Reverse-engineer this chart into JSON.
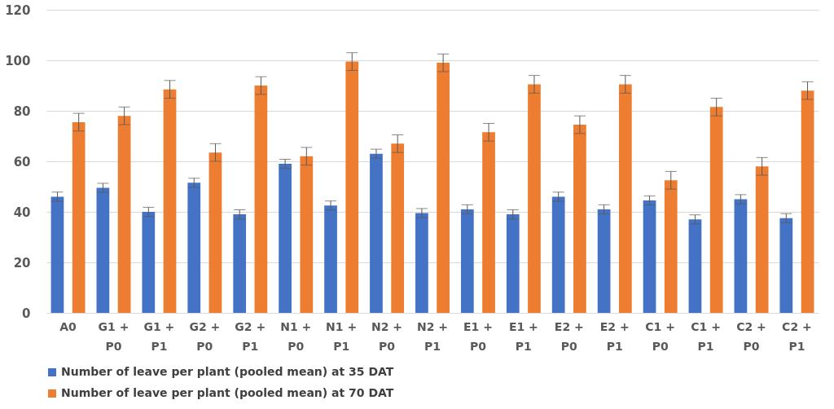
{
  "chart_data": {
    "type": "bar",
    "categories": [
      "A0",
      "G1 + P0",
      "G1 + P1",
      "G2 + P0",
      "G2 + P1",
      "N1 + P0",
      "N1 + P1",
      "N2 + P0",
      "N2 + P1",
      "E1 + P0",
      "E1 + P1",
      "E2 + P0",
      "E2 + P1",
      "C1 + P0",
      "C1 + P1",
      "C2 + P0",
      "C2 + P1"
    ],
    "series": [
      {
        "name": "Number of leave per plant (pooled mean) at 35 DAT",
        "color": "#4472c4",
        "values": [
          46,
          49.5,
          40,
          51.5,
          39,
          59,
          42.5,
          63,
          39.5,
          41,
          39,
          46,
          41,
          44.5,
          37,
          45,
          37.5
        ],
        "errors": [
          1.8,
          1.8,
          1.8,
          1.8,
          1.8,
          1.8,
          1.8,
          1.8,
          1.8,
          1.8,
          1.8,
          1.8,
          1.8,
          1.8,
          1.8,
          1.8,
          1.8
        ]
      },
      {
        "name": "Number of leave per plant (pooled mean) at 70 DAT",
        "color": "#ed7d31",
        "values": [
          75.5,
          78,
          88.5,
          63.5,
          90,
          62,
          99.5,
          67,
          99,
          71.5,
          90.5,
          74.5,
          90.5,
          52.5,
          81.5,
          58,
          88
        ],
        "errors": [
          3.5,
          3.5,
          3.5,
          3.5,
          3.5,
          3.5,
          3.5,
          3.5,
          3.5,
          3.5,
          3.5,
          3.5,
          3.5,
          3.5,
          3.5,
          3.5,
          3.5
        ]
      }
    ],
    "ylim": [
      0,
      120
    ],
    "yticks": [
      0,
      20,
      40,
      60,
      80,
      100,
      120
    ],
    "grid": "y",
    "legend": "bottom"
  }
}
